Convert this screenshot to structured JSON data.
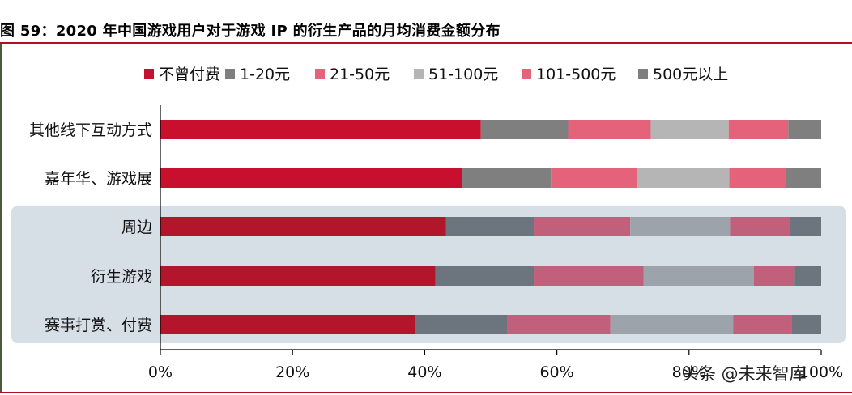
{
  "title": "图 59：2020 年中国游戏用户对于游戏 IP 的衍生产品的月均消费金额分布",
  "watermark": "头条 @未来智库",
  "chart_data": {
    "type": "bar",
    "orientation": "horizontal",
    "stacked": true,
    "categories": [
      "其他线下互动方式",
      "嘉年华、游戏展",
      "周边",
      "衍生游戏",
      "赛事打赏、付费"
    ],
    "series": [
      {
        "name": "不曾付费",
        "values": [
          48.5,
          45.6,
          43.2,
          41.6,
          38.5
        ]
      },
      {
        "name": "1-20元",
        "values": [
          13.2,
          13.5,
          13.3,
          14.9,
          14.0
        ]
      },
      {
        "name": "21-50元",
        "values": [
          12.5,
          13.0,
          14.6,
          16.6,
          15.6
        ]
      },
      {
        "name": "51-100元",
        "values": [
          11.8,
          14.0,
          15.1,
          16.7,
          18.6
        ]
      },
      {
        "name": "101-500元",
        "values": [
          9.0,
          8.6,
          9.1,
          6.2,
          8.8
        ]
      },
      {
        "name": "500元以上",
        "values": [
          5.0,
          5.3,
          4.7,
          4.0,
          4.5
        ]
      }
    ],
    "colors": [
      "#c8102e",
      "#7f7f7f",
      "#e5637a",
      "#b5b5b5",
      "#e5637a",
      "#7f7f7f"
    ],
    "shaded_colors": [
      "#b3152a",
      "#6c757d",
      "#c0607a",
      "#9da3ab",
      "#c0607a",
      "#6c757d"
    ],
    "shaded_categories": [
      "周边",
      "衍生游戏",
      "赛事打赏、付费"
    ],
    "x_ticks": [
      "0%",
      "20%",
      "40%",
      "60%",
      "80%",
      "100%"
    ],
    "xlim": [
      0,
      100
    ],
    "legend_position": "top"
  }
}
